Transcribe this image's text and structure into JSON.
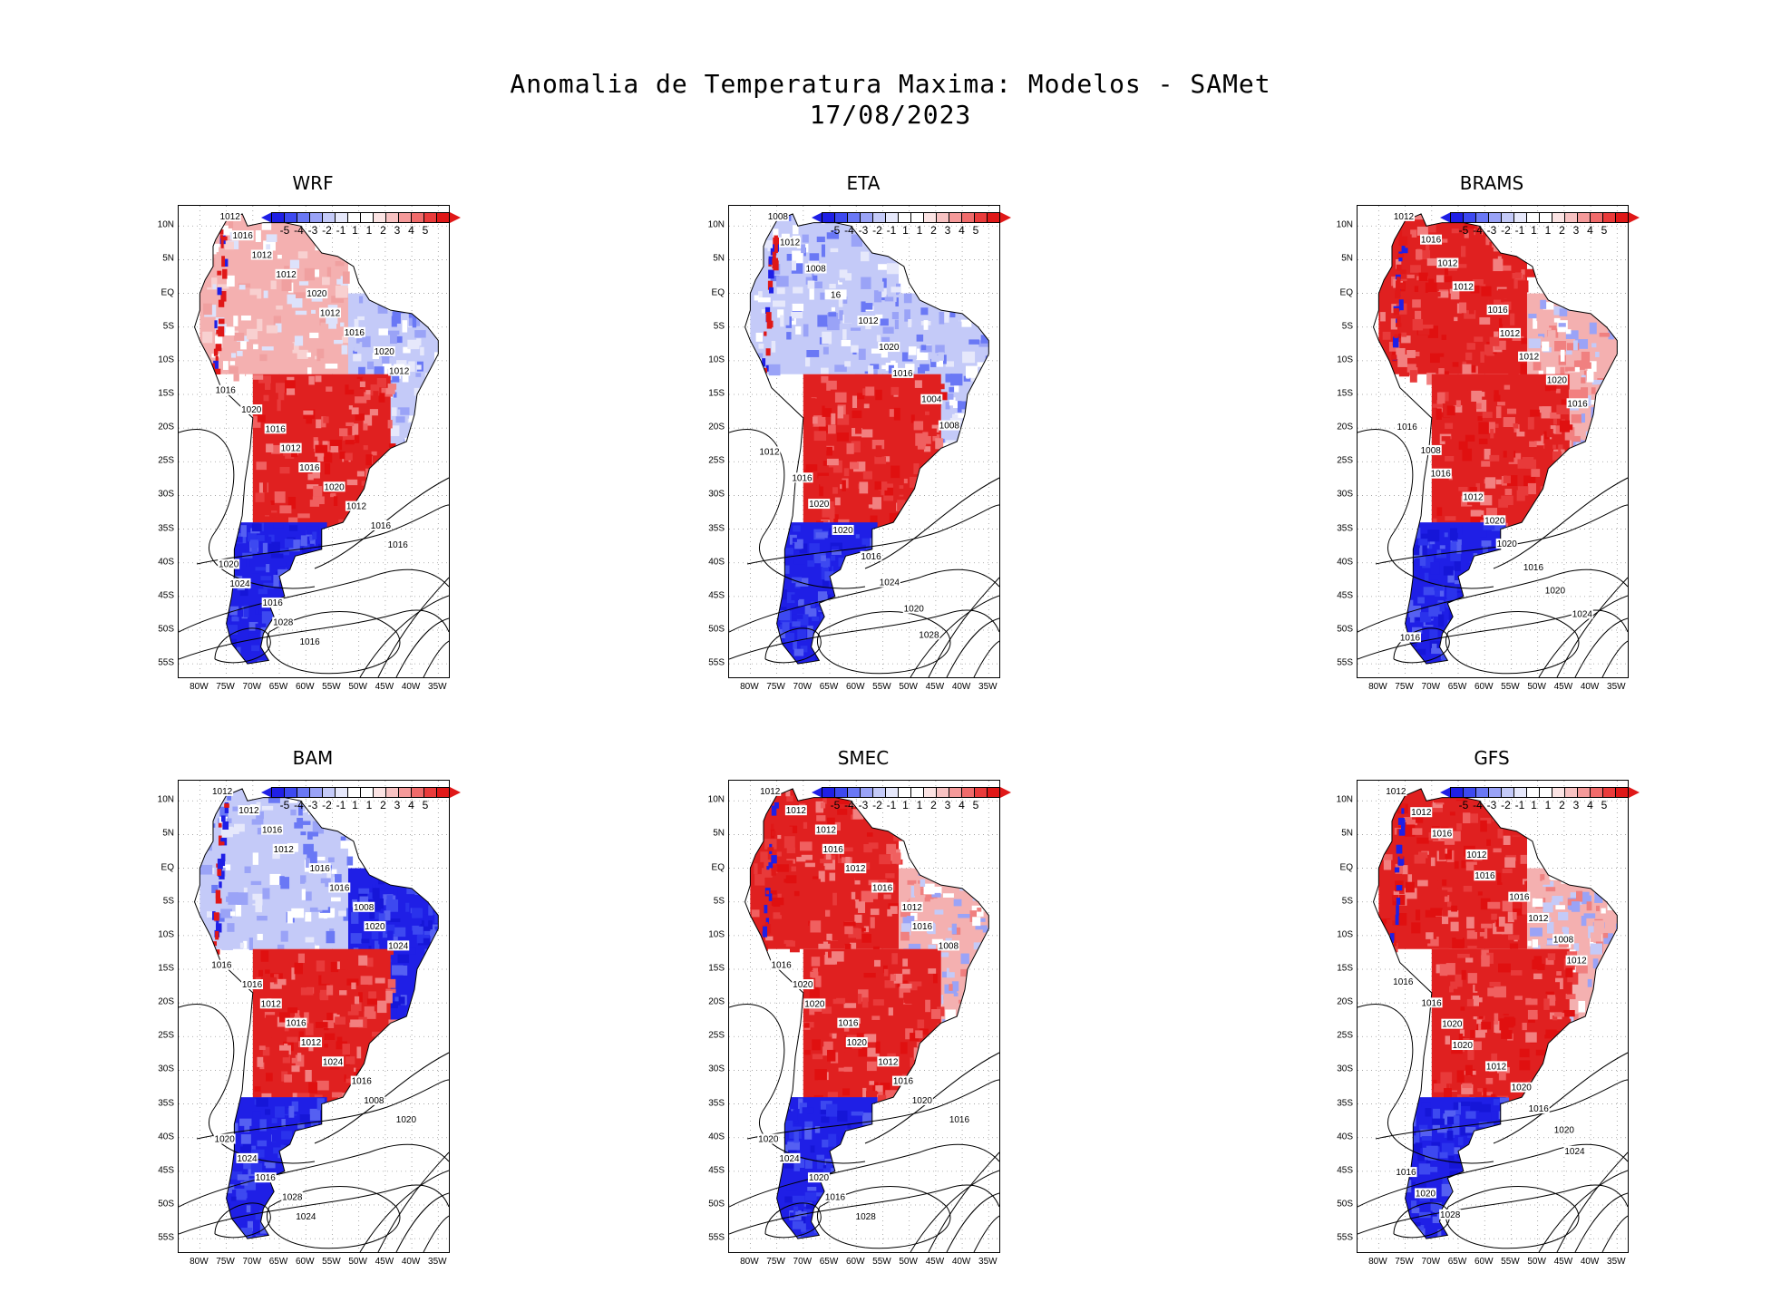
{
  "title": {
    "line1": "Anomalia de Temperatura Maxima: Modelos - SAMet",
    "line2": "17/08/2023"
  },
  "colors": {
    "legend": [
      "#1f1fe6",
      "#3d49f0",
      "#6a78f5",
      "#9aa3f7",
      "#c4caf8",
      "#e6e8fb",
      "#ffffff",
      "#ffffff",
      "#fbe3e3",
      "#f8c2c2",
      "#f59a9a",
      "#f06b6b",
      "#ea3b3b",
      "#e01818"
    ],
    "tip_left": "#1f1fe6",
    "tip_right": "#e01818"
  },
  "legend_ticks": [
    "-5",
    "-4",
    "-3",
    "-2",
    "-1",
    "1",
    "1",
    "2",
    "3",
    "4",
    "5"
  ],
  "lat_ticks": [
    "10N",
    "5N",
    "EQ",
    "5S",
    "10S",
    "15S",
    "20S",
    "25S",
    "30S",
    "35S",
    "40S",
    "45S",
    "50S",
    "55S"
  ],
  "lon_ticks": [
    "80W",
    "75W",
    "70W",
    "65W",
    "60W",
    "55W",
    "50W",
    "45W",
    "40W",
    "35W"
  ],
  "chart_data": [
    {
      "type": "map",
      "title": "WRF",
      "variable": "Anomalia de Temperatura Maxima",
      "pattern": {
        "north": "warm-mixed",
        "northeast": "cool",
        "south-central": "warm",
        "patagonia": "cold"
      },
      "isobar_labels": [
        "1012",
        "1016",
        "1012",
        "1012",
        "1020",
        "1012",
        "1016",
        "1020",
        "1012",
        "1016",
        "1020",
        "1016",
        "1012",
        "1016",
        "1020",
        "1012",
        "1016",
        "1016",
        "1020",
        "1024",
        "1016",
        "1028",
        "1016"
      ]
    },
    {
      "type": "map",
      "title": "ETA",
      "variable": "Anomalia de Temperatura Maxima",
      "pattern": {
        "north": "cool",
        "northeast": "cool",
        "south-central": "warm",
        "patagonia": "cold"
      },
      "isobar_labels": [
        "1008",
        "1012",
        "1008",
        "16",
        "1012",
        "1020",
        "1016",
        "1004",
        "1008",
        "1012",
        "1016",
        "1020",
        "1020",
        "1016",
        "1024",
        "1020",
        "1028"
      ]
    },
    {
      "type": "map",
      "title": "BRAMS",
      "variable": "Anomalia de Temperatura Maxima",
      "pattern": {
        "north": "warm",
        "northeast": "mixed",
        "south-central": "warm",
        "patagonia": "cold"
      },
      "isobar_labels": [
        "1012",
        "1016",
        "1012",
        "1012",
        "1016",
        "1012",
        "1012",
        "1020",
        "1016",
        "1016",
        "1008",
        "1016",
        "1012",
        "1020",
        "1020",
        "1016",
        "1020",
        "1024",
        "1016"
      ]
    },
    {
      "type": "map",
      "title": "BAM",
      "variable": "Anomalia de Temperatura Maxima",
      "pattern": {
        "north": "cool",
        "northeast": "cold",
        "south-central": "warm",
        "patagonia": "cold"
      },
      "isobar_labels": [
        "1012",
        "1012",
        "1016",
        "1012",
        "1016",
        "1016",
        "1008",
        "1020",
        "1024",
        "1016",
        "1016",
        "1012",
        "1016",
        "1012",
        "1024",
        "1016",
        "1008",
        "1020",
        "1020",
        "1024",
        "1016",
        "1028",
        "1024"
      ]
    },
    {
      "type": "map",
      "title": "SMEC",
      "variable": "Anomalia de Temperatura Maxima",
      "pattern": {
        "north": "warm",
        "northeast": "mixed",
        "south-central": "warm",
        "patagonia": "cold"
      },
      "isobar_labels": [
        "1012",
        "1012",
        "1012",
        "1016",
        "1012",
        "1016",
        "1012",
        "1016",
        "1008",
        "1016",
        "1020",
        "1020",
        "1016",
        "1020",
        "1012",
        "1016",
        "1020",
        "1016",
        "1020",
        "1024",
        "1020",
        "1016",
        "1028"
      ]
    },
    {
      "type": "map",
      "title": "GFS",
      "variable": "Anomalia de Temperatura Maxima",
      "pattern": {
        "north": "warm",
        "northeast": "mixed",
        "south-central": "warm",
        "patagonia": "cold"
      },
      "isobar_labels": [
        "1012",
        "1012",
        "1016",
        "1012",
        "1016",
        "1016",
        "1012",
        "1008",
        "1012",
        "1016",
        "1016",
        "1020",
        "1020",
        "1012",
        "1020",
        "1016",
        "1020",
        "1024",
        "1016",
        "1020",
        "1028"
      ]
    }
  ]
}
